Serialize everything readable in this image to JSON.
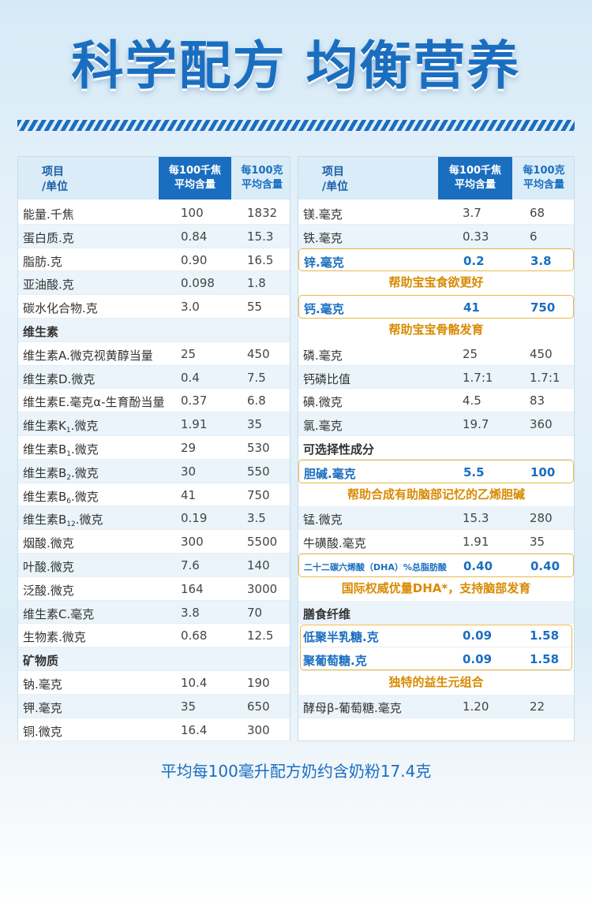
{
  "headline": "科学配方 均衡营养",
  "header_left": {
    "name_line1": "项目",
    "name_line2": "/单位",
    "col1_line1": "每100千焦",
    "col1_line2": "平均含量",
    "col2_line1": "每100克",
    "col2_line2": "平均含量"
  },
  "header_right": {
    "name_line1": "项目",
    "name_line2": "/单位",
    "col1_line1": "每100千焦",
    "col1_line2": "平均含量",
    "col2_line1": "每100克",
    "col2_line2": "平均含量"
  },
  "left_rows": [
    {
      "name": "能量.千焦",
      "v1": "100",
      "v2": "1832"
    },
    {
      "name": "蛋白质.克",
      "v1": "0.84",
      "v2": "15.3"
    },
    {
      "name": "脂肪.克",
      "v1": "0.90",
      "v2": "16.5"
    },
    {
      "name": "亚油酸.克",
      "v1": "0.098",
      "v2": "1.8"
    },
    {
      "name": "碳水化合物.克",
      "v1": "3.0",
      "v2": "55"
    },
    {
      "name": "维生素",
      "v1": "",
      "v2": ""
    },
    {
      "name": "维生素A.微克视黄醇当量",
      "v1": "25",
      "v2": "450"
    },
    {
      "name": "维生素D.微克",
      "v1": "0.4",
      "v2": "7.5"
    },
    {
      "name": "维生素E.毫克α-生育酚当量",
      "v1": "0.37",
      "v2": "6.8"
    },
    {
      "name": "维生素K",
      "sub": "1",
      "suffix": ".微克",
      "v1": "1.91",
      "v2": "35"
    },
    {
      "name": "维生素B",
      "sub": "1",
      "suffix": ".微克",
      "v1": "29",
      "v2": "530"
    },
    {
      "name": "维生素B",
      "sub": "2",
      "suffix": ".微克",
      "v1": "30",
      "v2": "550"
    },
    {
      "name": "维生素B",
      "sub": "6",
      "suffix": ".微克",
      "v1": "41",
      "v2": "750"
    },
    {
      "name": "维生素B",
      "sub": "12",
      "suffix": ".微克",
      "v1": "0.19",
      "v2": "3.5"
    },
    {
      "name": "烟酸.微克",
      "v1": "300",
      "v2": "5500"
    },
    {
      "name": "叶酸.微克",
      "v1": "7.6",
      "v2": "140"
    },
    {
      "name": "泛酸.微克",
      "v1": "164",
      "v2": "3000"
    },
    {
      "name": "维生素C.毫克",
      "v1": "3.8",
      "v2": "70"
    },
    {
      "name": "生物素.微克",
      "v1": "0.68",
      "v2": "12.5"
    },
    {
      "name": "矿物质",
      "v1": "",
      "v2": ""
    },
    {
      "name": "钠.毫克",
      "v1": "10.4",
      "v2": "190"
    },
    {
      "name": "钾.毫克",
      "v1": "35",
      "v2": "650"
    },
    {
      "name": "铜.微克",
      "v1": "16.4",
      "v2": "300"
    }
  ],
  "right_rows": [
    {
      "name": "镁.毫克",
      "v1": "3.7",
      "v2": "68"
    },
    {
      "name": "铁.毫克",
      "v1": "0.33",
      "v2": "6"
    },
    {
      "name": "锌.毫克",
      "v1": "0.2",
      "v2": "3.8"
    },
    {
      "name": "帮助宝宝食欲更好",
      "v1": "",
      "v2": ""
    },
    {
      "name": "钙.毫克",
      "v1": "41",
      "v2": "750"
    },
    {
      "name": "帮助宝宝骨骼发育",
      "v1": "",
      "v2": ""
    },
    {
      "name": "磷.毫克",
      "v1": "25",
      "v2": "450"
    },
    {
      "name": "钙磷比值",
      "v1": "1.7:1",
      "v2": "1.7:1"
    },
    {
      "name": "碘.微克",
      "v1": "4.5",
      "v2": "83"
    },
    {
      "name": "氯.毫克",
      "v1": "19.7",
      "v2": "360"
    },
    {
      "name": "可选择性成分",
      "v1": "",
      "v2": ""
    },
    {
      "name": "胆碱.毫克",
      "v1": "5.5",
      "v2": "100"
    },
    {
      "name": "帮助合成有助脑部记忆的乙烯胆碱",
      "v1": "",
      "v2": ""
    },
    {
      "name": "锰.微克",
      "v1": "15.3",
      "v2": "280"
    },
    {
      "name": "牛磺酸.毫克",
      "v1": "1.91",
      "v2": "35"
    },
    {
      "name": "二十二碳六烯酸（DHA）%总脂肪酸",
      "v1": "0.40",
      "v2": "0.40"
    },
    {
      "name": "国际权威优量DHA*，支持脑部发育",
      "v1": "",
      "v2": ""
    },
    {
      "name": "膳食纤维",
      "v1": "",
      "v2": ""
    },
    {
      "name": "低聚半乳糖.克",
      "v1": "0.09",
      "v2": "1.58"
    },
    {
      "name": "聚葡萄糖.克",
      "v1": "0.09",
      "v2": "1.58"
    },
    {
      "name": "独特的益生元组合",
      "v1": "",
      "v2": ""
    },
    {
      "name": "酵母β-葡萄糖.毫克",
      "v1": "1.20",
      "v2": "22"
    }
  ],
  "footer": "平均每100毫升配方奶约含奶粉17.4克"
}
